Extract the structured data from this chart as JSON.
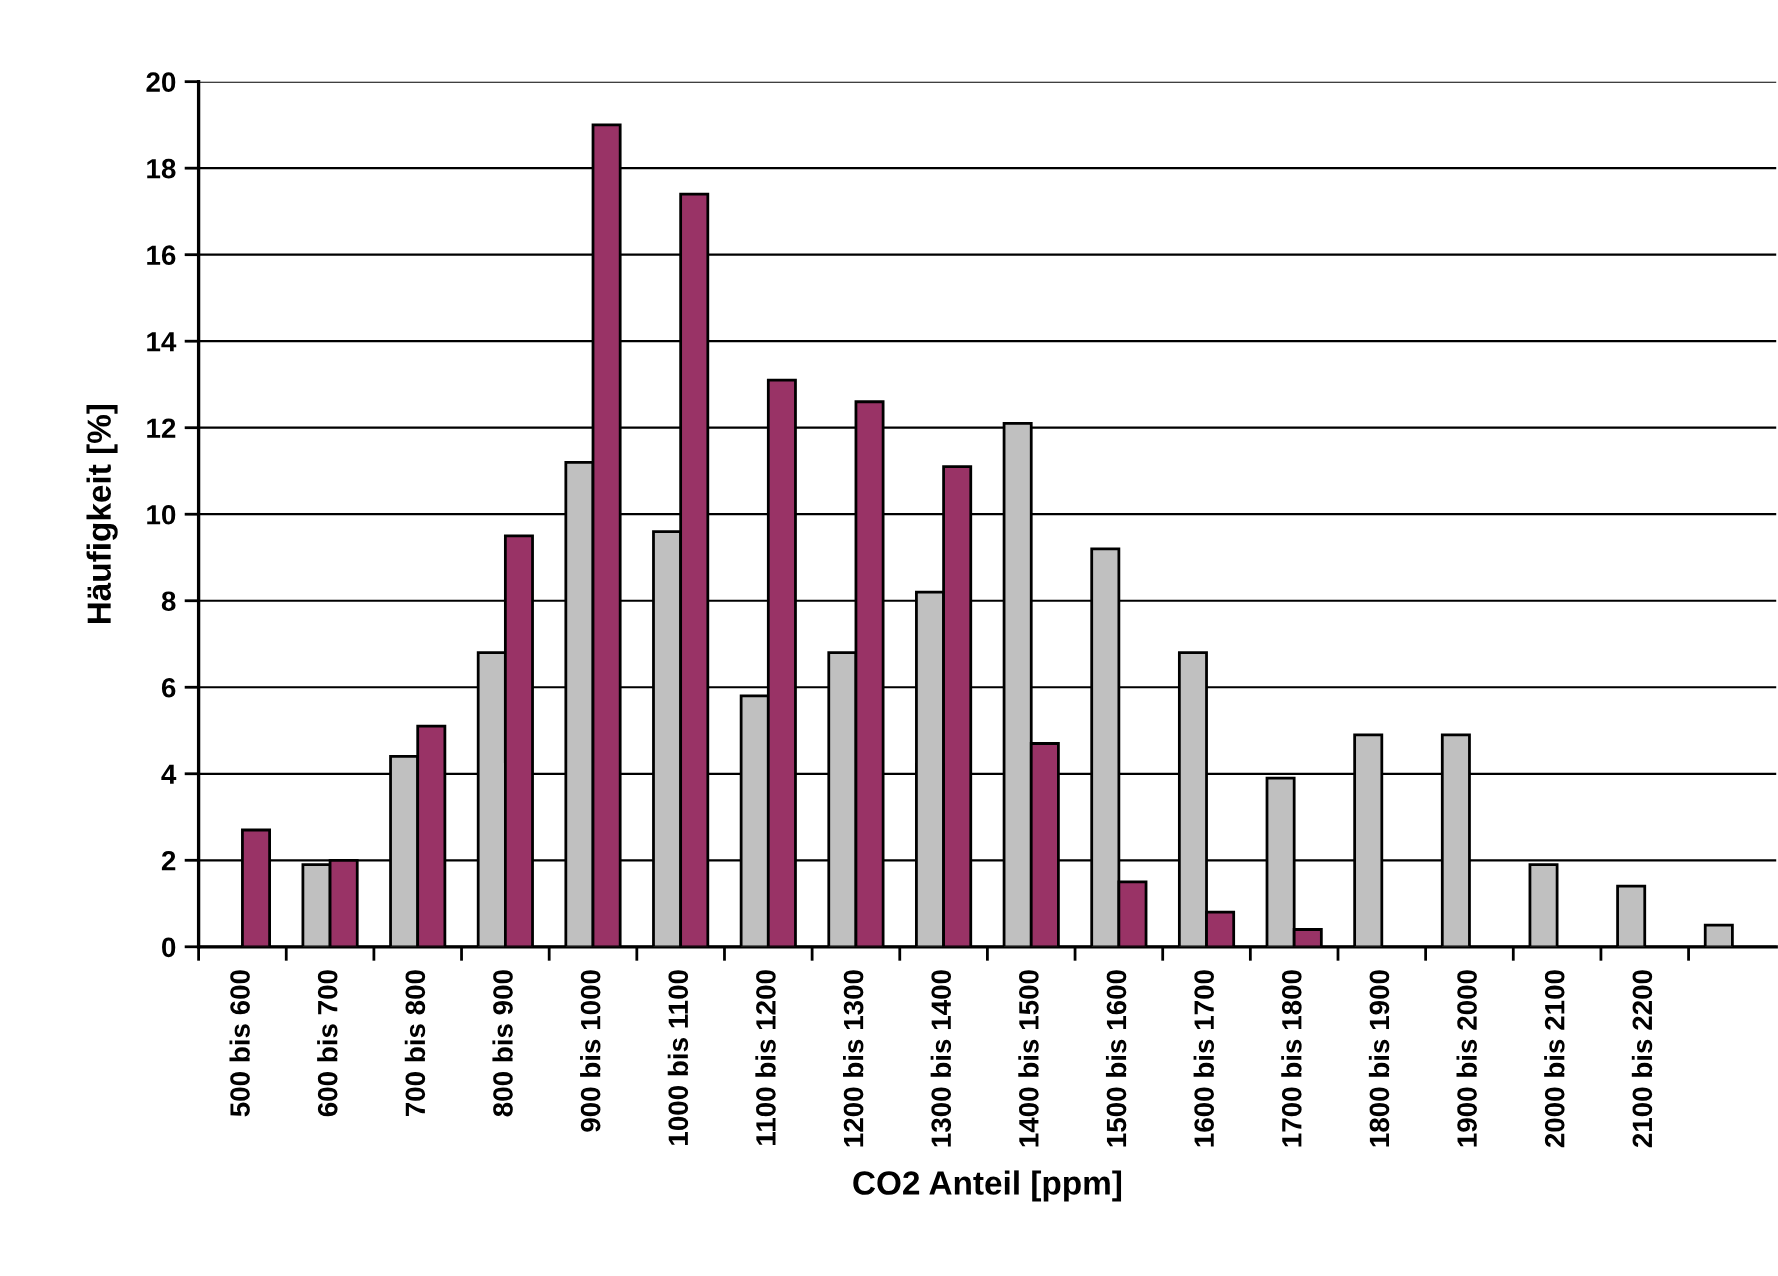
{
  "chart_data": {
    "type": "bar",
    "xlabel": "CO2 Anteil [ppm]",
    "ylabel": "Häufigkeit [%]",
    "categories": [
      "500 bis 600",
      "600 bis 700",
      "700 bis 800",
      "800 bis 900",
      "900 bis 1000",
      "1000 bis 1100",
      "1100 bis 1200",
      "1200 bis 1300",
      "1300 bis 1400",
      "1400 bis 1500",
      "1500 bis 1600",
      "1600 bis 1700",
      "1700 bis 1800",
      "1800 bis 1900",
      "1900 bis 2000",
      "2000 bis 2100",
      "2100 bis 2200",
      null
    ],
    "series": [
      {
        "color": "#c0c0c0",
        "values": [
          null,
          1.9,
          4.4,
          6.8,
          11.2,
          9.6,
          5.8,
          6.8,
          8.2,
          12.1,
          9.2,
          6.8,
          3.9,
          4.9,
          4.9,
          1.9,
          1.4,
          0.5
        ]
      },
      {
        "color": "#993366",
        "values": [
          2.7,
          2.0,
          5.1,
          9.5,
          19.0,
          17.4,
          13.1,
          12.6,
          11.1,
          4.7,
          1.5,
          0.8,
          0.4,
          null,
          null,
          null,
          null,
          null
        ]
      }
    ],
    "ylim": [
      0,
      20
    ],
    "yticks": [
      0,
      2,
      4,
      6,
      8,
      10,
      12,
      14,
      16,
      18,
      20
    ],
    "grid": "y"
  }
}
